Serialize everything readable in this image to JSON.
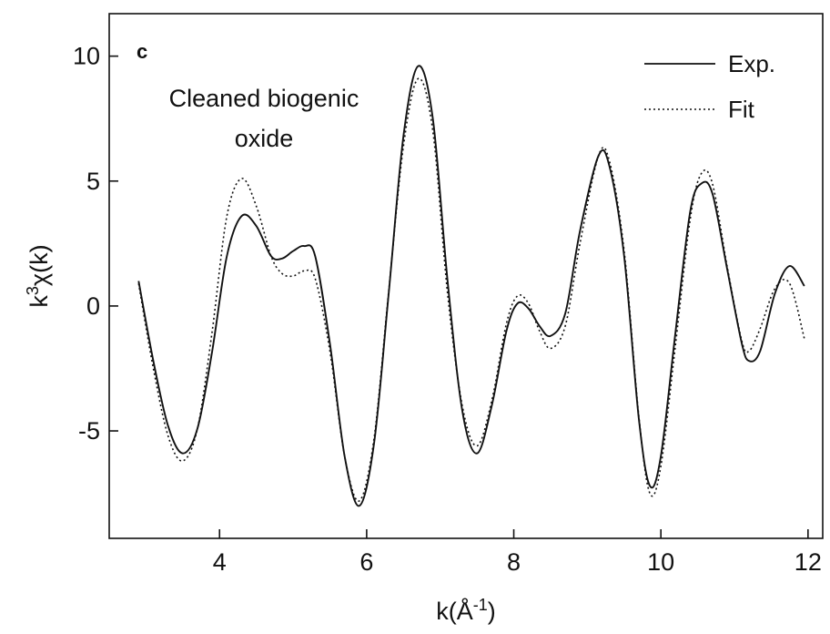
{
  "chart_data": {
    "type": "line",
    "panel_label": "c",
    "annotation": [
      "Cleaned biogenic",
      "oxide"
    ],
    "xlabel": "k(Å",
    "xlabel_sup": "-1",
    "xlabel_end": ")",
    "ylabel": "k",
    "ylabel_sup": "3",
    "ylabel_end": "χ(k)",
    "xlim": [
      2.5,
      12.2
    ],
    "ylim": [
      -9.3,
      11.7
    ],
    "xticks": [
      4,
      6,
      8,
      10,
      12
    ],
    "yticks": [
      -5,
      0,
      5,
      10
    ],
    "grid": false,
    "legend_position": "top-right",
    "series": [
      {
        "name": "Exp.",
        "style": "solid",
        "color": "#111111",
        "x": [
          2.9,
          3.1,
          3.3,
          3.5,
          3.7,
          3.9,
          4.1,
          4.3,
          4.5,
          4.7,
          4.85,
          5.0,
          5.15,
          5.3,
          5.5,
          5.7,
          5.9,
          6.1,
          6.3,
          6.5,
          6.7,
          6.9,
          7.1,
          7.3,
          7.5,
          7.7,
          7.9,
          8.05,
          8.2,
          8.35,
          8.5,
          8.7,
          8.9,
          9.15,
          9.3,
          9.5,
          9.7,
          9.85,
          10.0,
          10.2,
          10.4,
          10.55,
          10.7,
          10.9,
          11.1,
          11.2,
          11.35,
          11.55,
          11.75,
          11.95
        ],
        "y": [
          1.0,
          -2.2,
          -4.8,
          -5.9,
          -4.9,
          -1.8,
          2.0,
          3.6,
          3.2,
          2.0,
          1.9,
          2.2,
          2.4,
          2.0,
          -1.5,
          -6.0,
          -8.0,
          -5.5,
          0.5,
          6.8,
          9.6,
          7.5,
          1.0,
          -4.2,
          -5.9,
          -4.0,
          -1.0,
          0.1,
          -0.1,
          -0.8,
          -1.2,
          -0.3,
          3.0,
          6.0,
          5.6,
          2.0,
          -4.5,
          -7.2,
          -6.0,
          -1.0,
          3.8,
          4.9,
          4.5,
          1.5,
          -1.5,
          -2.2,
          -1.8,
          0.5,
          1.6,
          0.8
        ]
      },
      {
        "name": "Fit",
        "style": "dotted",
        "color": "#111111",
        "x": [
          2.9,
          3.1,
          3.3,
          3.5,
          3.7,
          3.9,
          4.1,
          4.3,
          4.5,
          4.7,
          4.85,
          5.0,
          5.15,
          5.3,
          5.5,
          5.7,
          5.9,
          6.1,
          6.3,
          6.5,
          6.7,
          6.9,
          7.1,
          7.3,
          7.5,
          7.7,
          7.9,
          8.05,
          8.2,
          8.35,
          8.5,
          8.7,
          8.9,
          9.15,
          9.3,
          9.5,
          9.7,
          9.85,
          10.0,
          10.2,
          10.4,
          10.55,
          10.7,
          10.9,
          11.1,
          11.2,
          11.35,
          11.55,
          11.75,
          11.95
        ],
        "y": [
          0.9,
          -2.5,
          -5.2,
          -6.2,
          -4.9,
          -1.0,
          3.6,
          5.1,
          4.0,
          2.0,
          1.3,
          1.2,
          1.4,
          1.1,
          -1.8,
          -6.0,
          -7.8,
          -5.3,
          0.6,
          6.4,
          9.1,
          7.0,
          0.5,
          -4.0,
          -5.6,
          -3.8,
          -0.7,
          0.4,
          0.1,
          -1.0,
          -1.7,
          -0.8,
          2.5,
          6.0,
          5.8,
          2.2,
          -4.4,
          -7.5,
          -6.4,
          -1.5,
          3.5,
          5.3,
          4.9,
          1.6,
          -1.4,
          -1.8,
          -0.9,
          0.7,
          0.9,
          -1.3
        ]
      }
    ]
  }
}
